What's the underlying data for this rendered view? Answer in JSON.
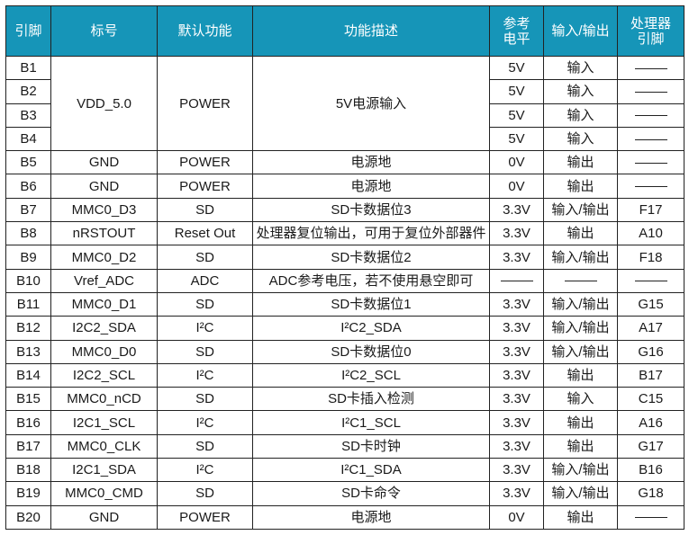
{
  "headers": {
    "pin": "引脚",
    "label": "标号",
    "default_function": "默认功能",
    "description": "功能描述",
    "ref_level": "参考电平",
    "io": "输入/输出",
    "cpu_pin": "处理器引脚"
  },
  "dash": "——",
  "rows": [
    {
      "pin": "B1",
      "label": "VDD_5.0",
      "default": "POWER",
      "desc": "5V电源输入",
      "level": "5V",
      "io": "输入",
      "cpu": "——"
    },
    {
      "pin": "B2",
      "level": "5V",
      "io": "输入",
      "cpu": "——"
    },
    {
      "pin": "B3",
      "level": "5V",
      "io": "输入",
      "cpu": "——"
    },
    {
      "pin": "B4",
      "level": "5V",
      "io": "输入",
      "cpu": "——"
    },
    {
      "pin": "B5",
      "label": "GND",
      "default": "POWER",
      "desc": "电源地",
      "level": "0V",
      "io": "输出",
      "cpu": "——"
    },
    {
      "pin": "B6",
      "label": "GND",
      "default": "POWER",
      "desc": "电源地",
      "level": "0V",
      "io": "输出",
      "cpu": "——"
    },
    {
      "pin": "B7",
      "label": "MMC0_D3",
      "default": "SD",
      "desc": "SD卡数据位3",
      "level": "3.3V",
      "io": "输入/输出",
      "cpu": "F17"
    },
    {
      "pin": "B8",
      "label": "nRSTOUT",
      "default": "Reset Out",
      "desc": "处理器复位输出，可用于复位外部器件",
      "level": "3.3V",
      "io": "输出",
      "cpu": "A10"
    },
    {
      "pin": "B9",
      "label": "MMC0_D2",
      "default": "SD",
      "desc": "SD卡数据位2",
      "level": "3.3V",
      "io": "输入/输出",
      "cpu": "F18"
    },
    {
      "pin": "B10",
      "label": "Vref_ADC",
      "default": "ADC",
      "desc": "ADC参考电压，若不使用悬空即可",
      "level": "——",
      "io": "——",
      "cpu": "——"
    },
    {
      "pin": "B11",
      "label": "MMC0_D1",
      "default": "SD",
      "desc": "SD卡数据位1",
      "level": "3.3V",
      "io": "输入/输出",
      "cpu": "G15"
    },
    {
      "pin": "B12",
      "label": "I2C2_SDA",
      "default": "I²C",
      "desc": "I²C2_SDA",
      "level": "3.3V",
      "io": "输入/输出",
      "cpu": "A17"
    },
    {
      "pin": "B13",
      "label": "MMC0_D0",
      "default": "SD",
      "desc": "SD卡数据位0",
      "level": "3.3V",
      "io": "输入/输出",
      "cpu": "G16"
    },
    {
      "pin": "B14",
      "label": "I2C2_SCL",
      "default": "I²C",
      "desc": "I²C2_SCL",
      "level": "3.3V",
      "io": "输出",
      "cpu": "B17"
    },
    {
      "pin": "B15",
      "label": "MMC0_nCD",
      "default": "SD",
      "desc": "SD卡插入检测",
      "level": "3.3V",
      "io": "输入",
      "cpu": "C15"
    },
    {
      "pin": "B16",
      "label": "I2C1_SCL",
      "default": "I²C",
      "desc": "I²C1_SCL",
      "level": "3.3V",
      "io": "输出",
      "cpu": "A16"
    },
    {
      "pin": "B17",
      "label": "MMC0_CLK",
      "default": "SD",
      "desc": "SD卡时钟",
      "level": "3.3V",
      "io": "输出",
      "cpu": "G17"
    },
    {
      "pin": "B18",
      "label": "I2C1_SDA",
      "default": "I²C",
      "desc": "I²C1_SDA",
      "level": "3.3V",
      "io": "输入/输出",
      "cpu": "B16"
    },
    {
      "pin": "B19",
      "label": "MMC0_CMD",
      "default": "SD",
      "desc": "SD卡命令",
      "level": "3.3V",
      "io": "输入/输出",
      "cpu": "G18"
    },
    {
      "pin": "B20",
      "label": "GND",
      "default": "POWER",
      "desc": "电源地",
      "level": "0V",
      "io": "输出",
      "cpu": "——"
    }
  ],
  "colors": {
    "header_bg": "#1695b8",
    "header_text": "#ffffff",
    "border": "#222222"
  }
}
